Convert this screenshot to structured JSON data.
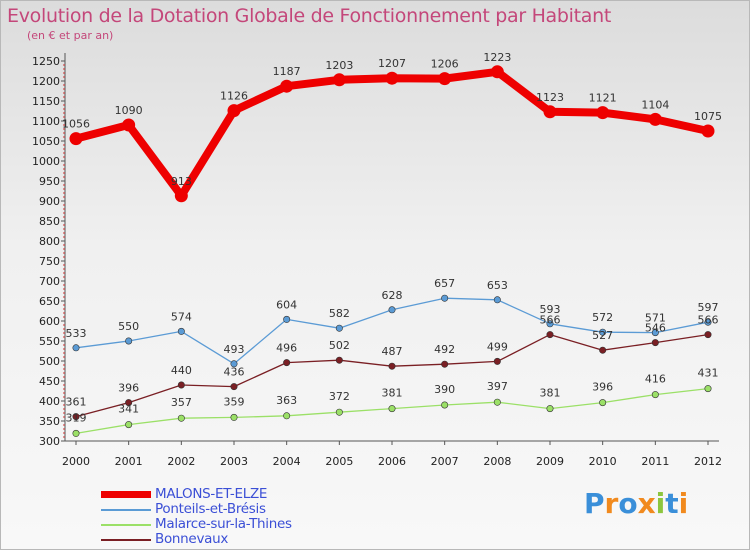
{
  "header": {
    "title": "Evolution de la Dotation Globale de Fonctionnement par Habitant",
    "subtitle": "(en € et par an)"
  },
  "chart_data": {
    "type": "line",
    "title": "Evolution de la Dotation Globale de Fonctionnement par Habitant",
    "subtitle": "(en € et par an)",
    "xlabel": "",
    "ylabel": "",
    "x": [
      "2000",
      "2001",
      "2002",
      "2003",
      "2004",
      "2005",
      "2006",
      "2007",
      "2008",
      "2009",
      "2010",
      "2011",
      "2012"
    ],
    "ylim": [
      300,
      1250
    ],
    "yticks": [
      300,
      350,
      400,
      450,
      500,
      550,
      600,
      650,
      700,
      750,
      800,
      850,
      900,
      950,
      1000,
      1050,
      1100,
      1150,
      1200,
      1250
    ],
    "grid": false,
    "legend_position": "bottom-left",
    "series": [
      {
        "name": "MALONS-ET-ELZE",
        "color": "#ee0000",
        "values": [
          1056,
          1090,
          913,
          1126,
          1187,
          1203,
          1207,
          1206,
          1223,
          1123,
          1121,
          1104,
          1075
        ]
      },
      {
        "name": "Ponteils-et-Brésis",
        "color": "#5b9bd5",
        "values": [
          533,
          550,
          574,
          493,
          604,
          582,
          628,
          657,
          653,
          593,
          572,
          571,
          597
        ]
      },
      {
        "name": "Malarce-sur-la-Thines",
        "color": "#9be067",
        "values": [
          319,
          341,
          357,
          359,
          363,
          372,
          381,
          390,
          397,
          381,
          396,
          416,
          431
        ]
      },
      {
        "name": "Bonnevaux",
        "color": "#7a1f24",
        "values": [
          361,
          396,
          440,
          436,
          496,
          502,
          487,
          492,
          499,
          566,
          527,
          546,
          566
        ]
      }
    ]
  },
  "brand": {
    "letters": [
      "P",
      "r",
      "o",
      "x",
      "i",
      "t",
      "i"
    ],
    "colors": [
      "#3a8fd9",
      "#f18a1e",
      "#3a8fd9",
      "#f18a1e",
      "#8cc63e",
      "#3a8fd9",
      "#f18a1e"
    ]
  }
}
